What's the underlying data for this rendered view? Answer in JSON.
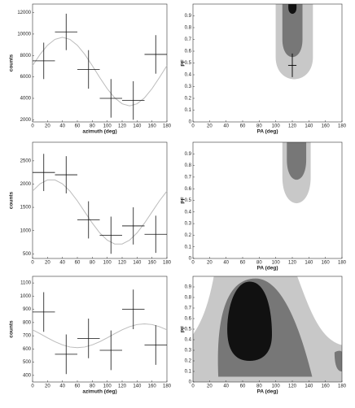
{
  "chart_data": [
    {
      "type": "scatter",
      "xlabel": "azimuth (deg)",
      "ylabel": "counts",
      "xlim": [
        0,
        180
      ],
      "xticks": [
        0,
        20,
        40,
        60,
        80,
        100,
        120,
        140,
        160,
        180
      ],
      "ylim": [
        1800,
        12800
      ],
      "yticks": [
        2000,
        4000,
        6000,
        8000,
        10000,
        12000
      ],
      "x": [
        15,
        45,
        75,
        105,
        135,
        165
      ],
      "x_errors": [
        15,
        15,
        15,
        15,
        15,
        15
      ],
      "values": [
        7500,
        10200,
        6700,
        4000,
        3800,
        8100
      ],
      "errors": [
        1700,
        1700,
        1800,
        1800,
        1800,
        1800
      ],
      "fit": {
        "x": [
          0,
          10,
          20,
          30,
          40,
          50,
          60,
          70,
          80,
          90,
          100,
          110,
          120,
          130,
          140,
          150,
          160,
          170,
          180
        ],
        "values": [
          7056,
          8100,
          8951,
          9507,
          9700,
          9507,
          8951,
          8100,
          7056,
          5944,
          4900,
          4049,
          3493,
          3300,
          3493,
          4049,
          4900,
          5944,
          7056
        ]
      }
    },
    {
      "type": "contour",
      "xlabel": "PA (deg)",
      "ylabel": "PF",
      "xlim": [
        0,
        180
      ],
      "xticks": [
        0,
        20,
        40,
        60,
        80,
        100,
        120,
        140,
        160,
        180
      ],
      "ylim": [
        0,
        1
      ],
      "yticks": [
        0,
        0.1,
        0.2,
        0.3,
        0.4,
        0.5,
        0.6,
        0.7,
        0.8,
        0.9
      ],
      "point": {
        "x": 120,
        "x_error": 5,
        "y": 0.48,
        "y_error": 0.1
      }
    },
    {
      "type": "scatter",
      "ylabel": "counts",
      "xlim": [
        0,
        180
      ],
      "xticks": [
        0,
        20,
        40,
        60,
        80,
        100,
        120,
        140,
        160,
        180
      ],
      "ylim": [
        400,
        2900
      ],
      "yticks": [
        500,
        1000,
        1500,
        2000,
        2500
      ],
      "x": [
        15,
        45,
        75,
        105,
        135,
        165
      ],
      "x_errors": [
        15,
        15,
        15,
        15,
        15,
        15
      ],
      "values": [
        2250,
        2200,
        1230,
        900,
        1100,
        920
      ],
      "errors": [
        400,
        400,
        400,
        400,
        400,
        400
      ],
      "fit": {
        "x": [
          0,
          10,
          20,
          30,
          40,
          50,
          60,
          70,
          80,
          90,
          100,
          110,
          120,
          130,
          140,
          150,
          160,
          170,
          180
        ],
        "values": [
          1850,
          2006,
          2089,
          2089,
          2006,
          1850,
          1639,
          1400,
          1161,
          950,
          794,
          711,
          711,
          794,
          950,
          1161,
          1400,
          1639,
          1850
        ]
      }
    },
    {
      "type": "contour",
      "xlabel": "PA (deg)",
      "ylabel": "PF",
      "xlim": [
        0,
        180
      ],
      "xticks": [
        0,
        20,
        40,
        60,
        80,
        100,
        120,
        140,
        160,
        180
      ],
      "ylim": [
        0,
        1
      ],
      "yticks": [
        0,
        0.1,
        0.2,
        0.3,
        0.4,
        0.5,
        0.6,
        0.7,
        0.8,
        0.9
      ]
    },
    {
      "type": "scatter",
      "xlabel": "azimuth (deg)",
      "ylabel": "counts",
      "xlim": [
        0,
        180
      ],
      "xticks": [
        0,
        20,
        40,
        60,
        80,
        100,
        120,
        140,
        160,
        180
      ],
      "ylim": [
        350,
        1150
      ],
      "yticks": [
        400,
        500,
        600,
        700,
        800,
        900,
        1000,
        1100
      ],
      "x": [
        15,
        45,
        75,
        105,
        135,
        165
      ],
      "x_errors": [
        15,
        15,
        15,
        15,
        15,
        15
      ],
      "values": [
        880,
        560,
        680,
        590,
        900,
        630
      ],
      "errors": [
        150,
        150,
        150,
        150,
        150,
        150
      ],
      "fit": {
        "x": [
          0,
          10,
          20,
          30,
          40,
          50,
          60,
          70,
          80,
          90,
          100,
          110,
          120,
          130,
          140,
          150,
          160,
          170,
          180
        ],
        "values": [
          745,
          716,
          684,
          655,
          631,
          615,
          610,
          615,
          631,
          655,
          684,
          716,
          745,
          769,
          785,
          790,
          785,
          769,
          745
        ]
      }
    },
    {
      "type": "contour",
      "xlabel": "PA (deg)",
      "ylabel": "PF",
      "xlim": [
        0,
        180
      ],
      "xticks": [
        0,
        20,
        40,
        60,
        80,
        100,
        120,
        140,
        160,
        180
      ],
      "ylim": [
        0,
        1
      ],
      "yticks": [
        0,
        0.1,
        0.2,
        0.3,
        0.4,
        0.5,
        0.6,
        0.7,
        0.8,
        0.9
      ]
    }
  ]
}
